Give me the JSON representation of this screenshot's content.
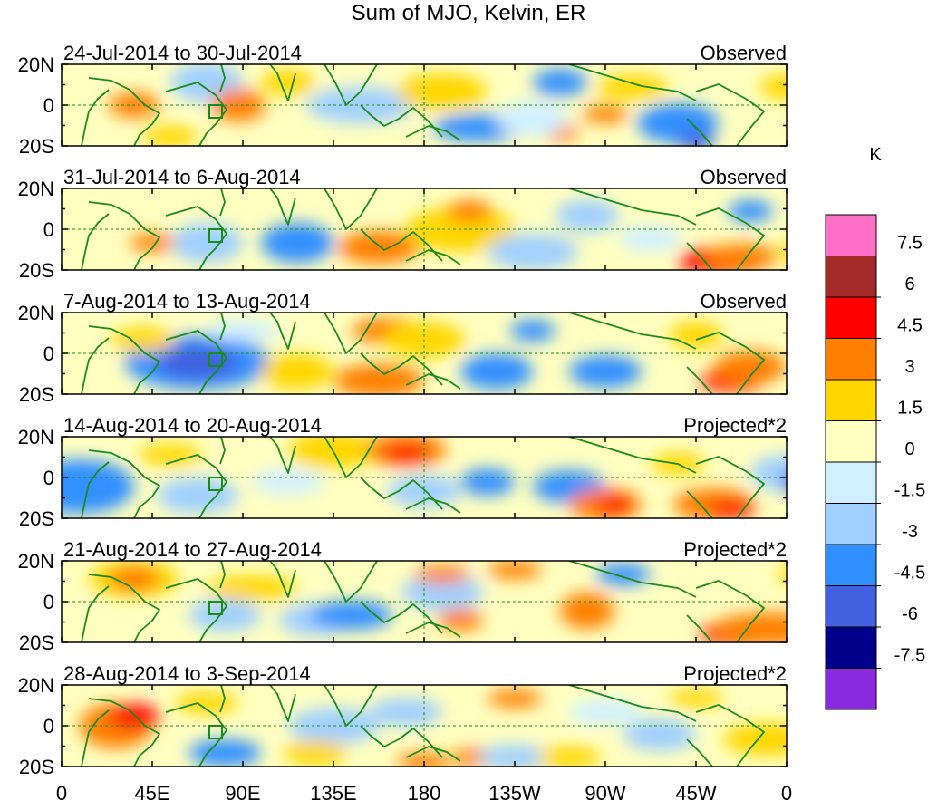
{
  "title": "Sum of MJO, Kelvin, ER",
  "panels": [
    {
      "date_range": "24-Jul-2014 to 30-Jul-2014",
      "status": "Observed"
    },
    {
      "date_range": "31-Jul-2014 to 6-Aug-2014",
      "status": "Observed"
    },
    {
      "date_range": "7-Aug-2014 to 13-Aug-2014",
      "status": "Observed"
    },
    {
      "date_range": "14-Aug-2014 to 20-Aug-2014",
      "status": "Projected*2"
    },
    {
      "date_range": "21-Aug-2014 to 27-Aug-2014",
      "status": "Projected*2"
    },
    {
      "date_range": "28-Aug-2014 to 3-Sep-2014",
      "status": "Projected*2"
    }
  ],
  "lat_ticks": [
    "20N",
    "0",
    "20S"
  ],
  "lon_ticks": [
    "0",
    "45E",
    "90E",
    "135E",
    "180",
    "135W",
    "90W",
    "45W",
    "0"
  ],
  "colorbar": {
    "unit": "K",
    "colors": [
      "#ff6ec7",
      "#a52a2a",
      "#ff0000",
      "#ff7f00",
      "#ffd700",
      "#ffffc0",
      "#d0f0ff",
      "#a0d0ff",
      "#3090ff",
      "#4060e0",
      "#00008b",
      "#8a2be2"
    ],
    "labels": [
      "7.5",
      "6",
      "4.5",
      "3",
      "1.5",
      "0",
      "-1.5",
      "-3",
      "-4.5",
      "-6",
      "-7.5"
    ]
  },
  "colors": {
    "coast": "#1a8a1a",
    "grid": "#1a8a1a"
  }
}
